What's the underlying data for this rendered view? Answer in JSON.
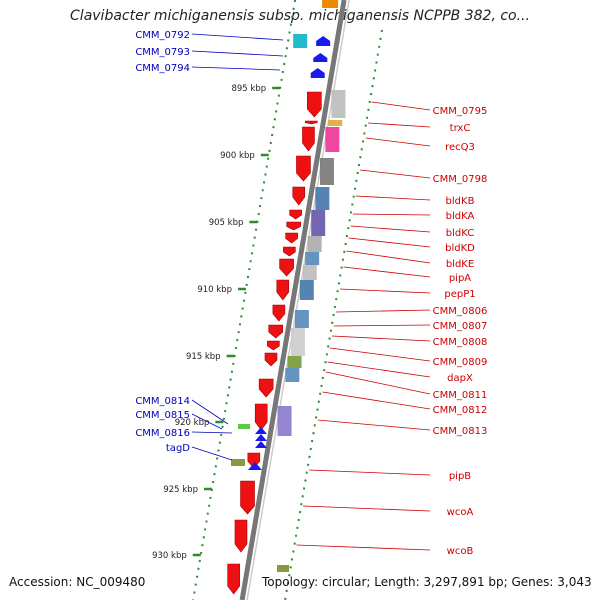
{
  "title": "Clavibacter michiganensis subsp. michiganensis NCPPB 382, co...",
  "footer": {
    "accession": "Accession: NC_009480",
    "summary": "Topology: circular; Length: 3,297,891 bp; Genes: 3,043"
  },
  "colors": {
    "backbone": "#777777",
    "ruler": "#2e8b2e",
    "forward_label": "#cc0000",
    "reverse_label": "#0000bb",
    "forward_gene": "#ee1111",
    "reverse_gene": "#1a1aee"
  },
  "ruler_ticks": [
    "895 kbp",
    "900 kbp",
    "905 kbp",
    "910 kbp",
    "915 kbp",
    "920 kbp",
    "925 kbp",
    "930 kbp"
  ],
  "forward_labels": [
    "CMM_0795",
    "trxC",
    "recQ3",
    "CMM_0798",
    "bldKB",
    "bldKA",
    "bldKC",
    "bldKD",
    "bldKE",
    "pipA",
    "pepP1",
    "CMM_0806",
    "CMM_0807",
    "CMM_0808",
    "CMM_0809",
    "dapX",
    "CMM_0811",
    "CMM_0812",
    "CMM_0813",
    "pipB",
    "wcoA",
    "wcoB"
  ],
  "reverse_labels": [
    "CMM_0792",
    "CMM_0793",
    "CMM_0794",
    "CMM_0814",
    "CMM_0815",
    "CMM_0816",
    "tagD"
  ]
}
